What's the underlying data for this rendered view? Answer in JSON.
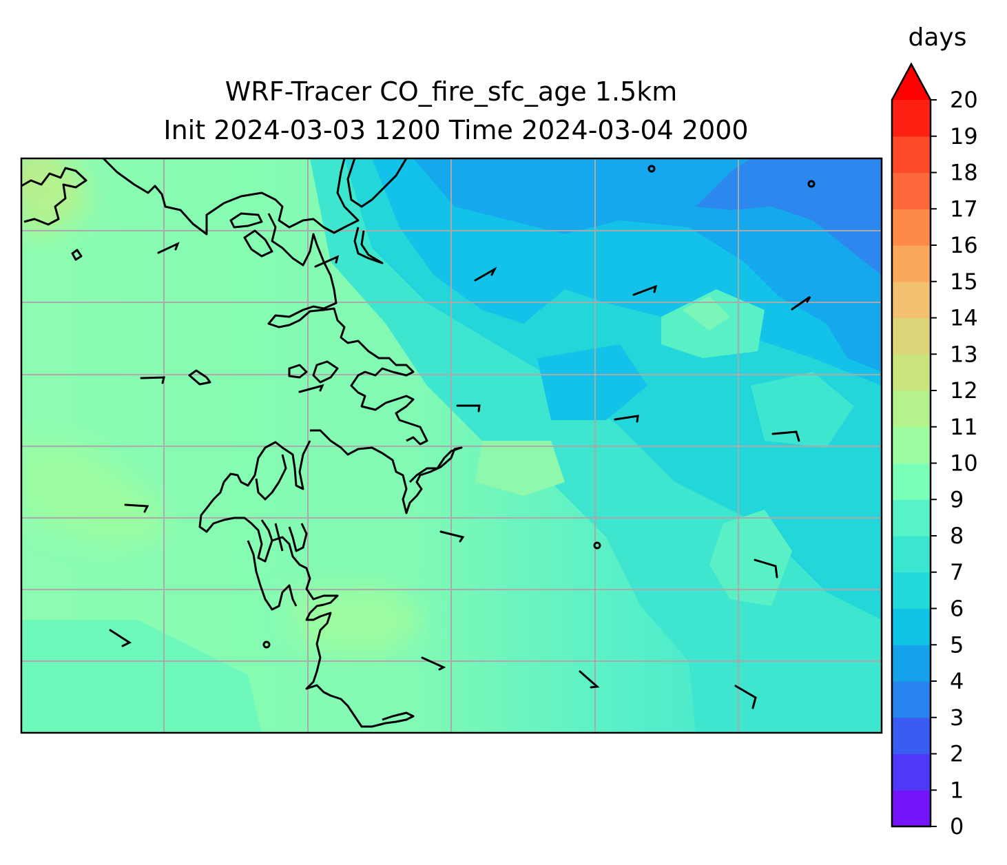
{
  "title": {
    "line1": "WRF-Tracer CO_fire_sfc_age 1.5km",
    "line2": "Init 2024-03-03 1200 Time 2024-03-04 2000"
  },
  "colorbar": {
    "unit_label": "days",
    "min": 0,
    "max": 20,
    "extend": "max",
    "ticks": [
      "0",
      "1",
      "2",
      "3",
      "4",
      "5",
      "6",
      "7",
      "8",
      "9",
      "10",
      "11",
      "12",
      "13",
      "14",
      "15",
      "16",
      "17",
      "18",
      "19",
      "20"
    ],
    "colors": [
      "#7414fa",
      "#4f39f6",
      "#3b5cf0",
      "#2a84f0",
      "#14a2ea",
      "#10c4e6",
      "#22d8d8",
      "#3ae6d0",
      "#56f2c8",
      "#7affb8",
      "#9cfca0",
      "#b4f28e",
      "#cae47e",
      "#dcd678",
      "#f2c06e",
      "#fca85c",
      "#fe8a4a",
      "#fc683a",
      "#fe4a28",
      "#fe2012"
    ],
    "extend_color": "#ff0000"
  },
  "chart_data": {
    "type": "heatmap",
    "variable": "CO_fire_sfc_age",
    "units": "days",
    "title": "WRF-Tracer CO_fire_sfc_age 1.5km",
    "subtitle": "Init 2024-03-03 1200 Time 2024-03-04 2000",
    "value_range": [
      0,
      20
    ],
    "levels": [
      0,
      1,
      2,
      3,
      4,
      5,
      6,
      7,
      8,
      9,
      10,
      11,
      12,
      13,
      14,
      15,
      16,
      17,
      18,
      19,
      20
    ],
    "grid": true,
    "legend": "right colorbar",
    "field_summary": [
      {
        "region": "west",
        "approx_days": 10
      },
      {
        "region": "northwest corner",
        "approx_days": 13
      },
      {
        "region": "central",
        "approx_days": 9
      },
      {
        "region": "northeast",
        "approx_days": 4
      },
      {
        "region": "east",
        "approx_days": 7
      }
    ],
    "features": [
      "coastlines",
      "lat-lon gridlines",
      "wind barbs"
    ]
  }
}
